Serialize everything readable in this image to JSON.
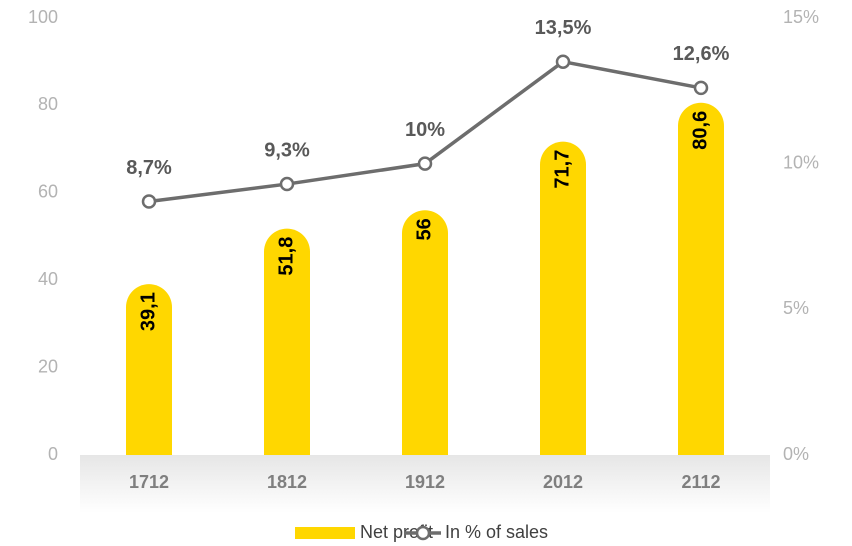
{
  "chart_data": {
    "type": "bar",
    "categories": [
      "1712",
      "1812",
      "1912",
      "2012",
      "2112"
    ],
    "series": [
      {
        "name": "Net profit",
        "color": "#ffd700",
        "values": [
          39.1,
          51.8,
          56,
          71.7,
          80.6
        ],
        "value_labels": [
          "39,1",
          "51,8",
          "56",
          "71,7",
          "80,6"
        ]
      },
      {
        "name": "In % of sales",
        "type": "line",
        "axis": "y2",
        "color": "#6d6d6d",
        "values": [
          8.7,
          9.3,
          10,
          13.5,
          12.6
        ],
        "value_labels": [
          "8,7%",
          "9,3%",
          "10%",
          "13,5%",
          "12,6%"
        ]
      }
    ],
    "ylim": [
      0,
      100
    ],
    "yticks": [
      0,
      20,
      40,
      60,
      80,
      100
    ],
    "y2lim": [
      0,
      15
    ],
    "y2ticks": [
      {
        "value": 0,
        "label": "0%"
      },
      {
        "value": 5,
        "label": "5%"
      },
      {
        "value": 10,
        "label": "10%"
      },
      {
        "value": 15,
        "label": "15%"
      }
    ],
    "grid": false,
    "legend": "bottom"
  }
}
